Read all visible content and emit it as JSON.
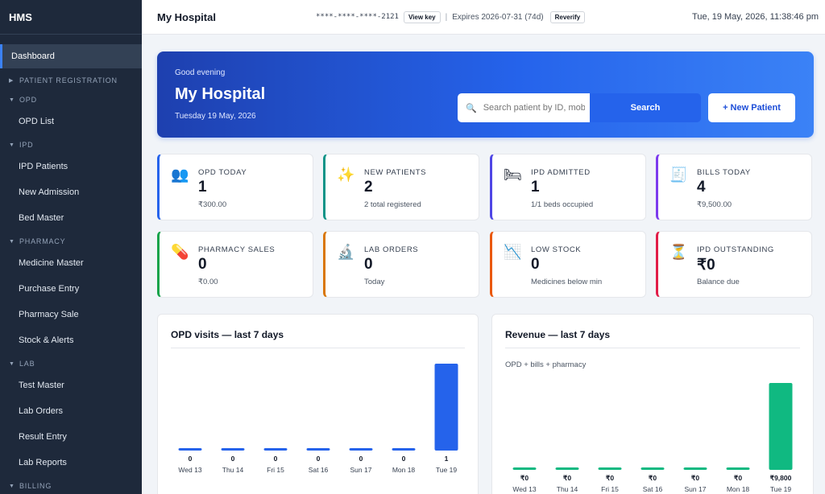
{
  "sidebar": {
    "brand": "HMS",
    "active": "Dashboard",
    "sections": [
      {
        "label": "PATIENT REGISTRATION",
        "expanded": false,
        "items": []
      },
      {
        "label": "OPD",
        "expanded": true,
        "items": [
          "OPD List"
        ]
      },
      {
        "label": "IPD",
        "expanded": true,
        "items": [
          "IPD Patients",
          "New Admission",
          "Bed Master"
        ]
      },
      {
        "label": "PHARMACY",
        "expanded": true,
        "items": [
          "Medicine Master",
          "Purchase Entry",
          "Pharmacy Sale",
          "Stock & Alerts"
        ]
      },
      {
        "label": "LAB",
        "expanded": true,
        "items": [
          "Test Master",
          "Lab Orders",
          "Result Entry",
          "Lab Reports"
        ]
      },
      {
        "label": "BILLING",
        "expanded": true,
        "items": []
      }
    ]
  },
  "topbar": {
    "title": "My Hospital",
    "license_key": "****-****-****-2121",
    "view_key": "View key",
    "expires": "Expires 2026-07-31 (74d)",
    "reverify": "Reverify",
    "datetime": "Tue, 19 May, 2026, 11:38:46 pm"
  },
  "hero": {
    "greeting": "Good evening",
    "name": "My Hospital",
    "date": "Tuesday 19 May, 2026",
    "search_placeholder": "Search patient by ID, mobile or name",
    "search_button": "Search",
    "new_patient": "+ New Patient"
  },
  "stats": [
    {
      "label": "OPD TODAY",
      "value": "1",
      "sub": "₹300.00",
      "icon": "people-icon",
      "glyph": "👥",
      "color": "#2563eb"
    },
    {
      "label": "NEW PATIENTS",
      "value": "2",
      "sub": "2 total registered",
      "icon": "sparkles-icon",
      "glyph": "✨",
      "color": "#0d9488"
    },
    {
      "label": "IPD ADMITTED",
      "value": "1",
      "sub": "1/1 beds occupied",
      "icon": "bed-icon",
      "glyph": "🛏",
      "color": "#4f46e5"
    },
    {
      "label": "BILLS TODAY",
      "value": "4",
      "sub": "₹9,500.00",
      "icon": "receipt-icon",
      "glyph": "🧾",
      "color": "#7c3aed"
    },
    {
      "label": "PHARMACY SALES",
      "value": "0",
      "sub": "₹0.00",
      "icon": "pill-icon",
      "glyph": "💊",
      "color": "#16a34a"
    },
    {
      "label": "LAB ORDERS",
      "value": "0",
      "sub": "Today",
      "icon": "microscope-icon",
      "glyph": "🔬",
      "color": "#d97706"
    },
    {
      "label": "LOW STOCK",
      "value": "0",
      "sub": "Medicines below min",
      "icon": "chart-down-icon",
      "glyph": "📉",
      "color": "#ea580c"
    },
    {
      "label": "IPD OUTSTANDING",
      "value": "₹0",
      "sub": "Balance due",
      "icon": "hourglass-icon",
      "glyph": "⏳",
      "color": "#e11d48"
    }
  ],
  "opd_chart": {
    "title": "OPD visits — last 7 days",
    "color": "#2563eb"
  },
  "revenue_chart": {
    "title": "Revenue — last 7 days",
    "subtitle": "OPD + bills + pharmacy",
    "color": "#10b981"
  },
  "chart_data": [
    {
      "type": "bar",
      "title": "OPD visits — last 7 days",
      "categories": [
        "Wed 13",
        "Thu 14",
        "Fri 15",
        "Sat 16",
        "Sun 17",
        "Mon 18",
        "Tue 19"
      ],
      "values": [
        0,
        0,
        0,
        0,
        0,
        0,
        1
      ],
      "labels": [
        "0",
        "0",
        "0",
        "0",
        "0",
        "0",
        "1"
      ]
    },
    {
      "type": "bar",
      "title": "Revenue — last 7 days",
      "subtitle": "OPD + bills + pharmacy",
      "categories": [
        "Wed 13",
        "Thu 14",
        "Fri 15",
        "Sat 16",
        "Sun 17",
        "Mon 18",
        "Tue 19"
      ],
      "values": [
        0,
        0,
        0,
        0,
        0,
        0,
        9800
      ],
      "labels": [
        "₹0",
        "₹0",
        "₹0",
        "₹0",
        "₹0",
        "₹0",
        "₹9,800"
      ]
    }
  ]
}
